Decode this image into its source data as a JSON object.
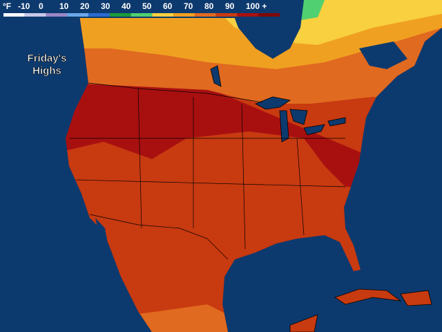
{
  "title": {
    "line1": "Friday's",
    "line2": "Highs"
  },
  "legend": {
    "unit": "°F",
    "labels": [
      "-10",
      "0",
      "10",
      "20",
      "30",
      "40",
      "50",
      "60",
      "70",
      "80",
      "90",
      "100 +"
    ],
    "colors": [
      "#ffffff",
      "#c8c8e8",
      "#9a86c8",
      "#6aa8e8",
      "#2a6ad0",
      "#1a9a3a",
      "#50d070",
      "#f8d040",
      "#f0a020",
      "#e06a20",
      "#c83a10",
      "#a81010",
      "#800808"
    ]
  }
}
